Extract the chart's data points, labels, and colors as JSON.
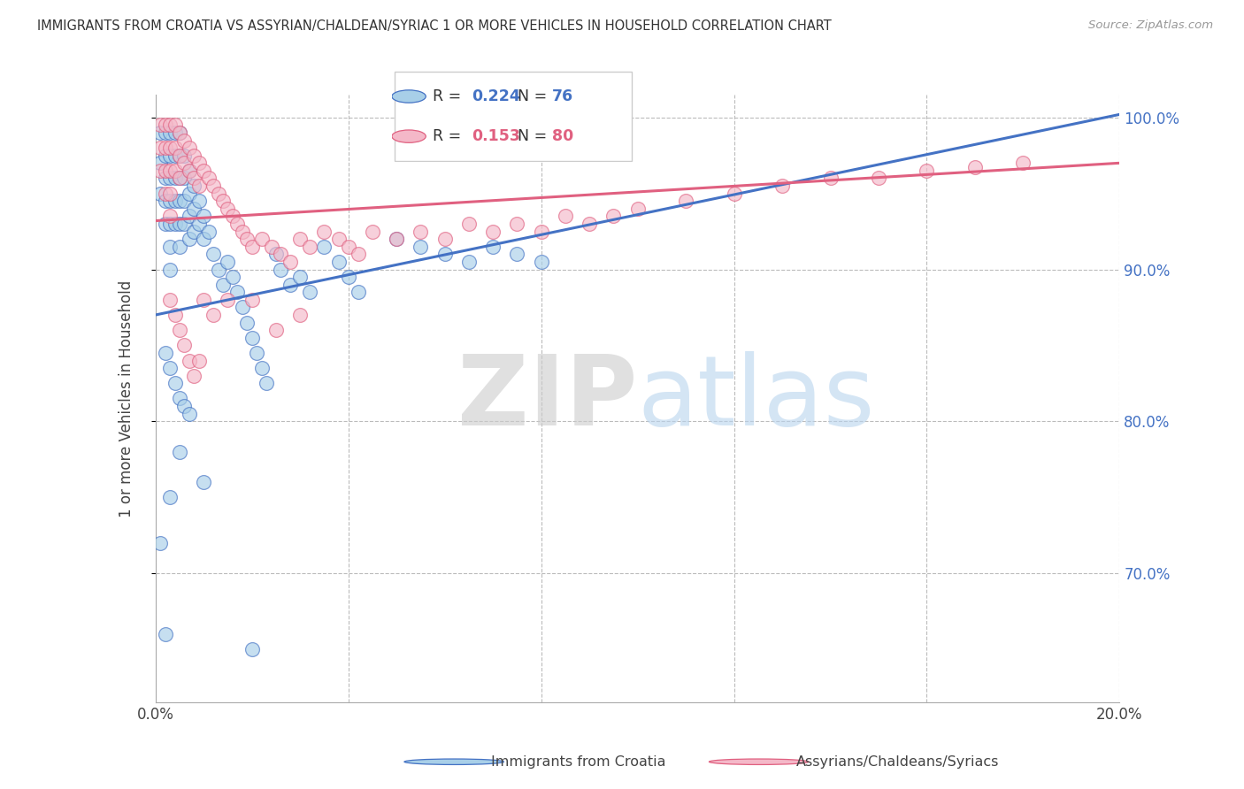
{
  "title": "IMMIGRANTS FROM CROATIA VS ASSYRIAN/CHALDEAN/SYRIAC 1 OR MORE VEHICLES IN HOUSEHOLD CORRELATION CHART",
  "source": "Source: ZipAtlas.com",
  "ylabel": "1 or more Vehicles in Household",
  "xlim": [
    0.0,
    0.2
  ],
  "ylim": [
    0.615,
    1.015
  ],
  "yticks": [
    0.7,
    0.8,
    0.9,
    1.0
  ],
  "ytick_labels": [
    "70.0%",
    "80.0%",
    "90.0%",
    "100.0%"
  ],
  "xtick_pos": [
    0.0,
    0.04,
    0.08,
    0.12,
    0.16,
    0.2
  ],
  "xtick_labels": [
    "0.0%",
    "",
    "",
    "",
    "",
    "20.0%"
  ],
  "blue_fill": "#a8cfe8",
  "blue_edge": "#4472c4",
  "pink_fill": "#f4b8c8",
  "pink_edge": "#e06080",
  "blue_line": "#4472c4",
  "pink_line": "#e06080",
  "right_tick_color": "#4472c4",
  "legend_blue_R": "0.224",
  "legend_blue_N": "76",
  "legend_pink_R": "0.153",
  "legend_pink_N": "80",
  "legend_label_blue": "Immigrants from Croatia",
  "legend_label_pink": "Assyrians/Chaldeans/Syriacs",
  "blue_x": [
    0.001,
    0.001,
    0.001,
    0.002,
    0.002,
    0.002,
    0.002,
    0.002,
    0.003,
    0.003,
    0.003,
    0.003,
    0.003,
    0.003,
    0.003,
    0.004,
    0.004,
    0.004,
    0.004,
    0.004,
    0.005,
    0.005,
    0.005,
    0.005,
    0.005,
    0.005,
    0.006,
    0.006,
    0.006,
    0.006,
    0.007,
    0.007,
    0.007,
    0.007,
    0.008,
    0.008,
    0.008,
    0.009,
    0.009,
    0.01,
    0.01,
    0.011,
    0.012,
    0.013,
    0.014,
    0.015,
    0.016,
    0.017,
    0.018,
    0.019,
    0.02,
    0.021,
    0.022,
    0.023,
    0.025,
    0.026,
    0.028,
    0.03,
    0.032,
    0.035,
    0.038,
    0.04,
    0.042,
    0.05,
    0.055,
    0.06,
    0.065,
    0.07,
    0.075,
    0.08,
    0.002,
    0.003,
    0.004,
    0.005,
    0.006,
    0.007
  ],
  "blue_y": [
    0.99,
    0.97,
    0.95,
    0.99,
    0.975,
    0.96,
    0.945,
    0.93,
    0.99,
    0.975,
    0.96,
    0.945,
    0.93,
    0.915,
    0.9,
    0.99,
    0.975,
    0.96,
    0.945,
    0.93,
    0.99,
    0.975,
    0.96,
    0.945,
    0.93,
    0.915,
    0.975,
    0.96,
    0.945,
    0.93,
    0.965,
    0.95,
    0.935,
    0.92,
    0.955,
    0.94,
    0.925,
    0.945,
    0.93,
    0.935,
    0.92,
    0.925,
    0.91,
    0.9,
    0.89,
    0.905,
    0.895,
    0.885,
    0.875,
    0.865,
    0.855,
    0.845,
    0.835,
    0.825,
    0.91,
    0.9,
    0.89,
    0.895,
    0.885,
    0.915,
    0.905,
    0.895,
    0.885,
    0.92,
    0.915,
    0.91,
    0.905,
    0.915,
    0.91,
    0.905,
    0.845,
    0.835,
    0.825,
    0.815,
    0.81,
    0.805
  ],
  "blue_outlier_x": [
    0.001,
    0.002,
    0.003,
    0.005,
    0.01,
    0.02
  ],
  "blue_outlier_y": [
    0.72,
    0.66,
    0.75,
    0.78,
    0.76,
    0.65
  ],
  "pink_x": [
    0.001,
    0.001,
    0.001,
    0.002,
    0.002,
    0.002,
    0.002,
    0.003,
    0.003,
    0.003,
    0.003,
    0.003,
    0.004,
    0.004,
    0.004,
    0.005,
    0.005,
    0.005,
    0.006,
    0.006,
    0.007,
    0.007,
    0.008,
    0.008,
    0.009,
    0.009,
    0.01,
    0.011,
    0.012,
    0.013,
    0.014,
    0.015,
    0.016,
    0.017,
    0.018,
    0.019,
    0.02,
    0.022,
    0.024,
    0.026,
    0.028,
    0.03,
    0.032,
    0.035,
    0.038,
    0.04,
    0.042,
    0.045,
    0.05,
    0.055,
    0.06,
    0.065,
    0.07,
    0.075,
    0.08,
    0.085,
    0.09,
    0.095,
    0.1,
    0.11,
    0.12,
    0.13,
    0.14,
    0.15,
    0.16,
    0.17,
    0.18,
    0.003,
    0.004,
    0.005,
    0.006,
    0.007,
    0.008,
    0.009,
    0.01,
    0.012,
    0.015,
    0.02,
    0.025,
    0.03
  ],
  "pink_y": [
    0.995,
    0.98,
    0.965,
    0.995,
    0.98,
    0.965,
    0.95,
    0.995,
    0.98,
    0.965,
    0.95,
    0.935,
    0.995,
    0.98,
    0.965,
    0.99,
    0.975,
    0.96,
    0.985,
    0.97,
    0.98,
    0.965,
    0.975,
    0.96,
    0.97,
    0.955,
    0.965,
    0.96,
    0.955,
    0.95,
    0.945,
    0.94,
    0.935,
    0.93,
    0.925,
    0.92,
    0.915,
    0.92,
    0.915,
    0.91,
    0.905,
    0.92,
    0.915,
    0.925,
    0.92,
    0.915,
    0.91,
    0.925,
    0.92,
    0.925,
    0.92,
    0.93,
    0.925,
    0.93,
    0.925,
    0.935,
    0.93,
    0.935,
    0.94,
    0.945,
    0.95,
    0.955,
    0.96,
    0.96,
    0.965,
    0.967,
    0.97,
    0.88,
    0.87,
    0.86,
    0.85,
    0.84,
    0.83,
    0.84,
    0.88,
    0.87,
    0.88,
    0.88,
    0.86,
    0.87
  ],
  "trend_blue_x0": 0.0,
  "trend_blue_y0": 0.87,
  "trend_blue_x1": 0.2,
  "trend_blue_y1": 1.002,
  "trend_pink_x0": 0.0,
  "trend_pink_y0": 0.932,
  "trend_pink_x1": 0.2,
  "trend_pink_y1": 0.97
}
